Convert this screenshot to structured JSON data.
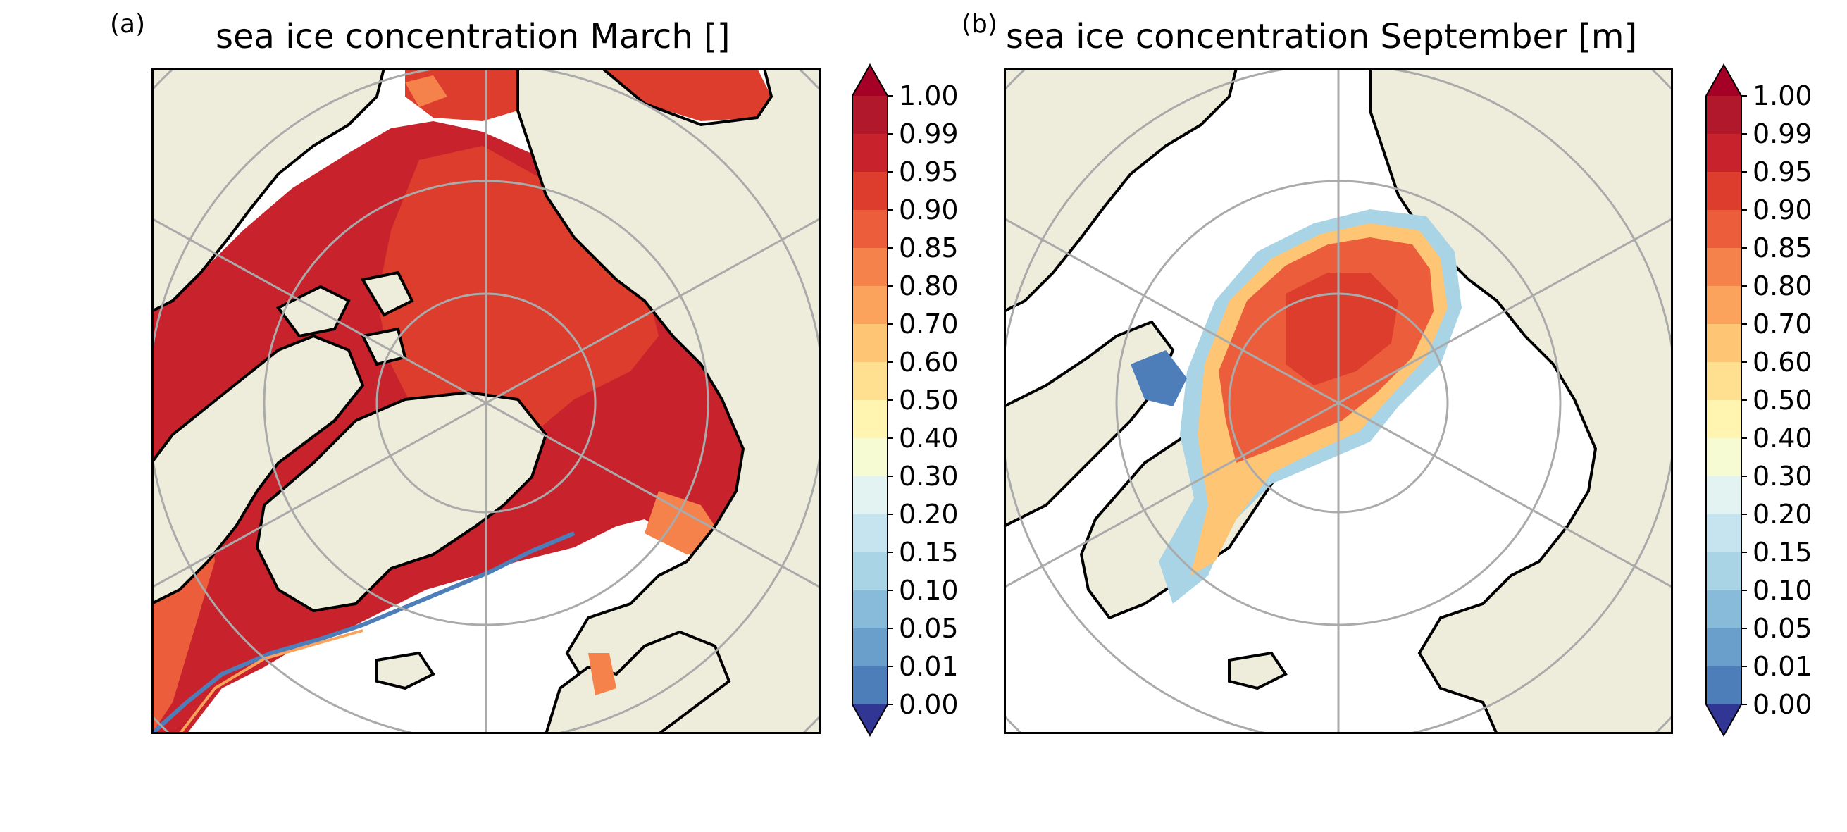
{
  "panels": [
    {
      "label": "(a)",
      "title": "sea ice concentration March []",
      "month": "March",
      "colorbar": {
        "ticks": [
          "1.00",
          "0.99",
          "0.95",
          "0.90",
          "0.85",
          "0.80",
          "0.70",
          "0.60",
          "0.50",
          "0.40",
          "0.30",
          "0.20",
          "0.15",
          "0.10",
          "0.05",
          "0.01",
          "0.00"
        ],
        "extend": "both"
      }
    },
    {
      "label": "(b)",
      "title": "sea ice concentration September [m]",
      "month": "September",
      "colorbar": {
        "ticks": [
          "1.00",
          "0.99",
          "0.95",
          "0.90",
          "0.85",
          "0.80",
          "0.70",
          "0.60",
          "0.50",
          "0.40",
          "0.30",
          "0.20",
          "0.15",
          "0.10",
          "0.05",
          "0.01",
          "0.00"
        ],
        "extend": "both"
      }
    }
  ],
  "colors": {
    "land": "#eeeddc",
    "ocean": "#ffffff",
    "coast": "#000000",
    "grid": "#aaaaaa",
    "colormap": [
      "#b2182b",
      "#c8232c",
      "#dc3d2d",
      "#ec5d3b",
      "#f5824b",
      "#fba35c",
      "#fdc574",
      "#fee090",
      "#fff5b1",
      "#f6fbd3",
      "#e2f3f2",
      "#c5e4ef",
      "#a9d4e6",
      "#88bbd9",
      "#6a9fcb",
      "#4e7eb9",
      "#3b57a4"
    ],
    "over": "#a50026",
    "under": "#313695"
  }
}
